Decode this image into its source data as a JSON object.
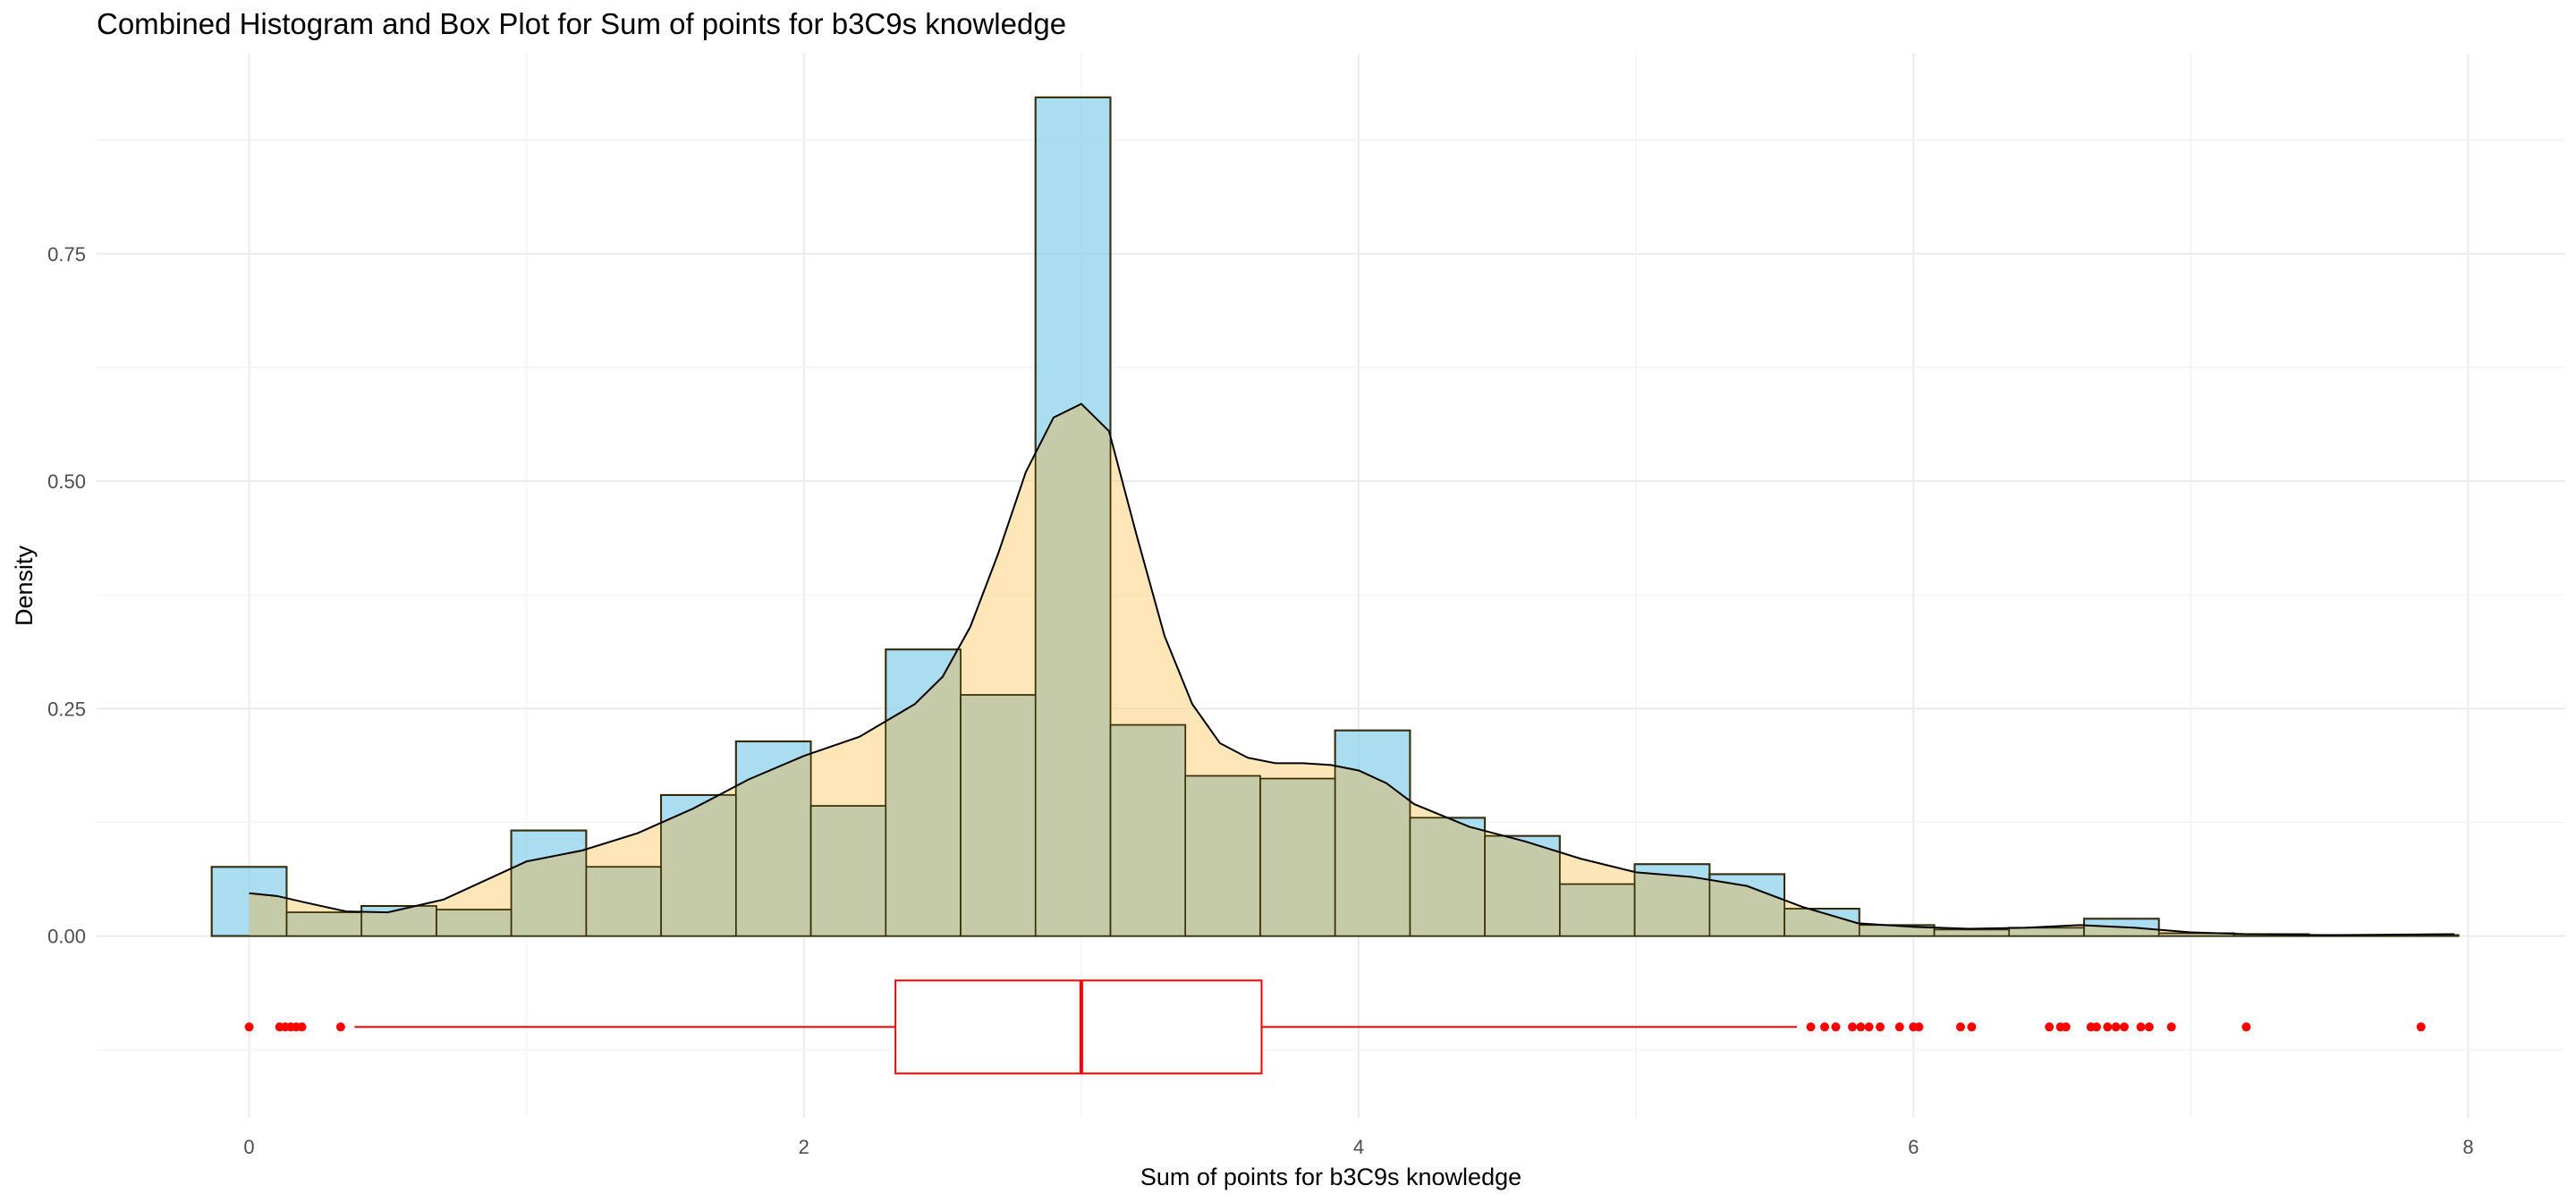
{
  "chart_data": {
    "type": "histogram+density+boxplot",
    "title": "Combined Histogram and Box Plot for Sum of points for b3C9s knowledge",
    "xlabel": "Sum of points for b3C9s knowledge",
    "ylabel": "Density",
    "xlim": [
      -0.55,
      8.35
    ],
    "ylim": [
      -0.2,
      0.97
    ],
    "x_ticks": [
      0,
      2,
      4,
      6,
      8
    ],
    "x_tick_labels": [
      "0",
      "2",
      "4",
      "6",
      "8"
    ],
    "y_ticks": [
      0.0,
      0.25,
      0.5,
      0.75
    ],
    "y_tick_labels": [
      "0.00",
      "0.25",
      "0.50",
      "0.75"
    ],
    "grid": true,
    "histogram": {
      "fill": "#87ceeb",
      "bin_width": 0.27,
      "bin_starts": [
        -0.135,
        0.135,
        0.405,
        0.675,
        0.945,
        1.215,
        1.485,
        1.755,
        2.025,
        2.295,
        2.565,
        2.835,
        3.105,
        3.375,
        3.645,
        3.915,
        4.185,
        4.455,
        4.725,
        4.995,
        5.265,
        5.535,
        5.805,
        6.075,
        6.345,
        6.615,
        6.885,
        7.155,
        7.425,
        7.695
      ],
      "values": [
        0.076,
        0.026,
        0.033,
        0.029,
        0.116,
        0.076,
        0.155,
        0.214,
        0.143,
        0.315,
        0.265,
        0.922,
        0.232,
        0.176,
        0.173,
        0.226,
        0.13,
        0.11,
        0.057,
        0.079,
        0.068,
        0.03,
        0.012,
        0.007,
        0.009,
        0.019,
        0.003,
        0.002,
        0.001,
        0.001
      ]
    },
    "density": {
      "fill": "#ffd27f",
      "x": [
        0.0,
        0.1,
        0.2,
        0.35,
        0.5,
        0.7,
        0.9,
        1.0,
        1.2,
        1.4,
        1.6,
        1.8,
        2.0,
        2.2,
        2.4,
        2.5,
        2.6,
        2.7,
        2.8,
        2.9,
        3.0,
        3.1,
        3.2,
        3.3,
        3.4,
        3.5,
        3.6,
        3.7,
        3.8,
        3.9,
        4.0,
        4.1,
        4.2,
        4.4,
        4.6,
        4.8,
        5.0,
        5.2,
        5.4,
        5.6,
        5.8,
        6.0,
        6.2,
        6.4,
        6.6,
        6.8,
        7.0,
        7.2,
        7.5,
        7.95
      ],
      "y": [
        0.047,
        0.044,
        0.037,
        0.027,
        0.026,
        0.04,
        0.068,
        0.082,
        0.094,
        0.113,
        0.14,
        0.172,
        0.198,
        0.219,
        0.255,
        0.285,
        0.34,
        0.42,
        0.51,
        0.57,
        0.585,
        0.555,
        0.44,
        0.33,
        0.255,
        0.212,
        0.196,
        0.19,
        0.19,
        0.188,
        0.182,
        0.168,
        0.145,
        0.12,
        0.104,
        0.085,
        0.07,
        0.065,
        0.055,
        0.032,
        0.014,
        0.01,
        0.008,
        0.009,
        0.012,
        0.009,
        0.004,
        0.002,
        0.001,
        0.002
      ]
    },
    "boxplot": {
      "color": "#ff0000",
      "y_position": -0.1,
      "whisker_low": 0.38,
      "q1": 2.33,
      "median": 3.0,
      "q3": 3.65,
      "whisker_high": 5.58,
      "outliers": [
        0.0,
        0.11,
        0.13,
        0.15,
        0.17,
        0.19,
        0.33,
        5.63,
        5.68,
        5.72,
        5.78,
        5.81,
        5.84,
        5.88,
        5.95,
        6.0,
        6.02,
        6.17,
        6.21,
        6.49,
        6.53,
        6.55,
        6.64,
        6.66,
        6.7,
        6.73,
        6.76,
        6.82,
        6.85,
        6.93,
        7.2,
        7.83
      ]
    }
  }
}
